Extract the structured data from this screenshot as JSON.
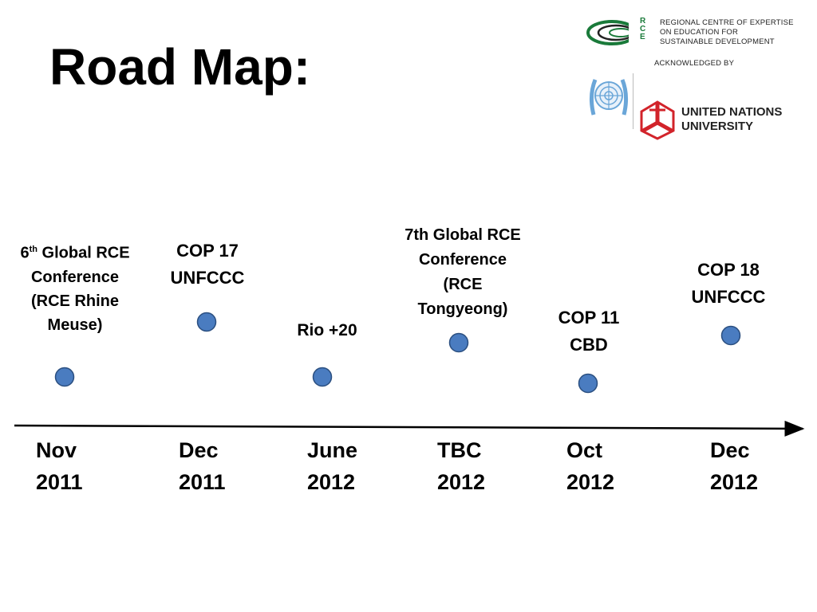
{
  "title": "Road Map:",
  "logos": {
    "rce_letters": [
      "R",
      "C",
      "E"
    ],
    "rce_lines": [
      "REGIONAL CENTRE OF EXPERTISE",
      "ON EDUCATION FOR",
      "SUSTAINABLE DEVELOPMENT"
    ],
    "acknowledged": "ACKNOWLEDGED BY",
    "unu_lines": [
      "UNITED NATIONS",
      "UNIVERSITY"
    ]
  },
  "events": [
    {
      "lines": [
        "Global RCE",
        "Conference",
        "(RCE Rhine",
        "Meuse)"
      ],
      "ordinal": "6",
      "ordinal_sup": "th"
    },
    {
      "lines": [
        "COP 17",
        "UNFCCC"
      ]
    },
    {
      "lines": [
        "Rio +20"
      ]
    },
    {
      "lines": [
        "7th Global RCE",
        "Conference",
        "(RCE",
        "Tongyeong)"
      ]
    },
    {
      "lines": [
        "COP 11",
        "CBD"
      ]
    },
    {
      "lines": [
        "COP 18",
        "UNFCCC"
      ]
    }
  ],
  "dates": [
    {
      "month": "Nov",
      "year": "2011"
    },
    {
      "month": "Dec",
      "year": "2011"
    },
    {
      "month": "June",
      "year": "2012"
    },
    {
      "month": "TBC",
      "year": "2012"
    },
    {
      "month": "Oct",
      "year": "2012"
    },
    {
      "month": "Dec",
      "year": "2012"
    }
  ],
  "colors": {
    "marker_fill": "#4a7cc0",
    "marker_stroke": "#2b4f80",
    "axis": "#000000",
    "rce_green": "#1a7a3a",
    "unu_red": "#d2232a"
  }
}
